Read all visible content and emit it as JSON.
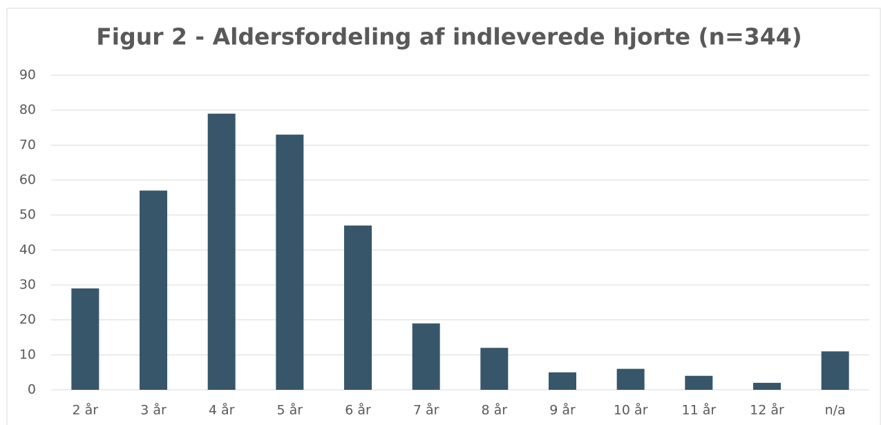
{
  "chart_data": {
    "type": "bar",
    "title": "Figur 2 - Aldersfordeling af indleverede hjorte (n=344)",
    "categories": [
      "2 år",
      "3 år",
      "4 år",
      "5 år",
      "6 år",
      "7 år",
      "8 år",
      "9 år",
      "10 år",
      "11 år",
      "12 år",
      "n/a"
    ],
    "values": [
      29,
      57,
      79,
      73,
      47,
      19,
      12,
      5,
      6,
      4,
      2,
      11
    ],
    "color": "#37566a",
    "ylim": [
      0,
      90
    ],
    "yticks": [
      0,
      10,
      20,
      30,
      40,
      50,
      60,
      70,
      80,
      90
    ],
    "grid": true
  }
}
